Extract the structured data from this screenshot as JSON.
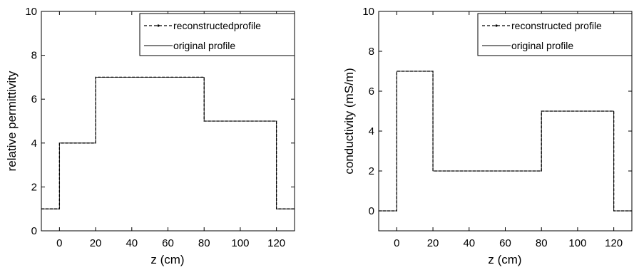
{
  "chart_data": [
    {
      "type": "line",
      "title": "",
      "xlabel": "z (cm)",
      "ylabel": "relative permittivity",
      "xlim": [
        -10,
        130
      ],
      "ylim": [
        0,
        10
      ],
      "xticks": [
        0,
        20,
        40,
        60,
        80,
        100,
        120
      ],
      "xtick_labels": [
        "0",
        "20",
        "40",
        "60",
        "80",
        "100",
        "120"
      ],
      "yticks": [
        0,
        2,
        4,
        6,
        8,
        10
      ],
      "ytick_labels": [
        "0",
        "2",
        "4",
        "6",
        "8",
        "10"
      ],
      "grid": false,
      "legend_position": "top-right",
      "series": [
        {
          "name": "reconstructed profile",
          "style": "dashed",
          "x": [
            -10,
            0,
            0,
            20,
            20,
            80,
            80,
            120,
            120,
            130
          ],
          "y": [
            1,
            1,
            4,
            4,
            7,
            7,
            5,
            5,
            1,
            1
          ]
        },
        {
          "name": "original profile",
          "style": "solid",
          "x": [
            -10,
            0,
            0,
            20,
            20,
            80,
            80,
            120,
            120,
            130
          ],
          "y": [
            1,
            1,
            4,
            4,
            7,
            7,
            5,
            5,
            1,
            1
          ]
        }
      ],
      "legend_labels": [
        "reconstructedprofile",
        "original profile"
      ]
    },
    {
      "type": "line",
      "title": "",
      "xlabel": "z (cm)",
      "ylabel": "conductivity (mS/m)",
      "xlim": [
        -10,
        130
      ],
      "ylim": [
        -1,
        10
      ],
      "xticks": [
        0,
        20,
        40,
        60,
        80,
        100,
        120
      ],
      "xtick_labels": [
        "0",
        "20",
        "40",
        "60",
        "80",
        "100",
        "120"
      ],
      "yticks": [
        0,
        2,
        4,
        6,
        8,
        10
      ],
      "ytick_labels": [
        "0",
        "2",
        "4",
        "6",
        "8",
        "10"
      ],
      "grid": false,
      "legend_position": "top-right",
      "series": [
        {
          "name": "reconstructed profile",
          "style": "dashed",
          "x": [
            -10,
            0,
            0,
            20,
            20,
            80,
            80,
            120,
            120,
            130
          ],
          "y": [
            0,
            0,
            7,
            7,
            2,
            2,
            5,
            5,
            0,
            0
          ]
        },
        {
          "name": "original profile",
          "style": "solid",
          "x": [
            -10,
            0,
            0,
            20,
            20,
            80,
            80,
            120,
            120,
            130
          ],
          "y": [
            0,
            0,
            7,
            7,
            2,
            2,
            5,
            5,
            0,
            0
          ]
        }
      ],
      "legend_labels": [
        "reconstructed profile",
        "original profile"
      ]
    }
  ]
}
